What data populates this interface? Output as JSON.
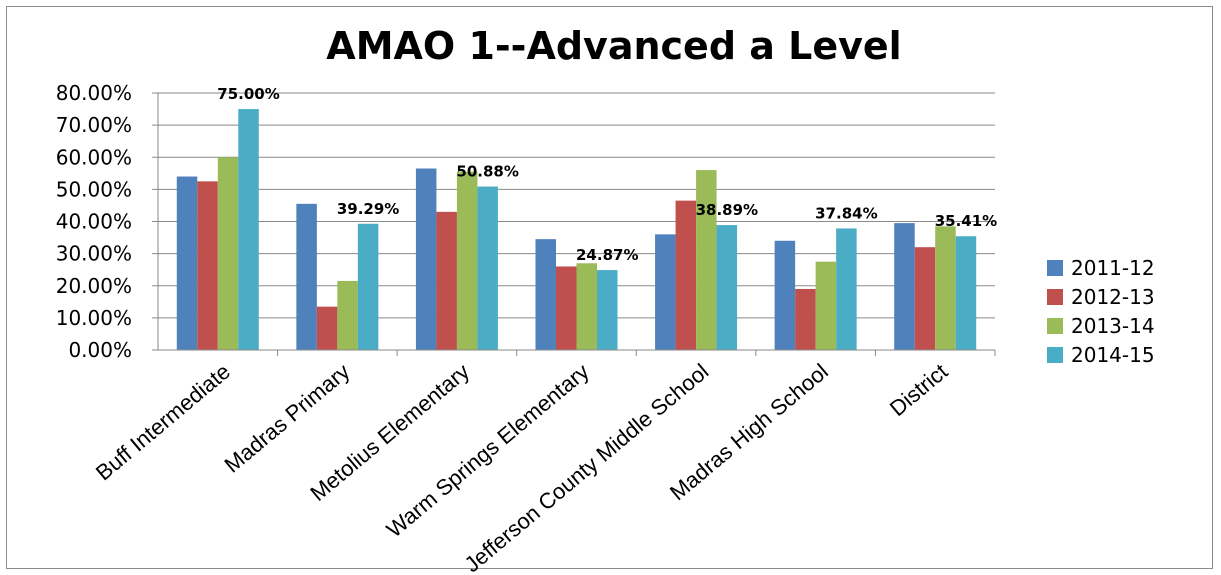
{
  "chart_data": {
    "type": "bar",
    "title": "AMAO 1--Advanced a Level",
    "xlabel": "",
    "ylabel": "",
    "ylim": [
      0,
      80
    ],
    "y_ticks": [
      "0.00%",
      "10.00%",
      "20.00%",
      "30.00%",
      "40.00%",
      "50.00%",
      "60.00%",
      "70.00%",
      "80.00%"
    ],
    "grid": true,
    "legend_position": "right",
    "categories": [
      "Buff Intermediate",
      "Madras Primary",
      "Metolius Elementary",
      "Warm Springs Elementary",
      "Jefferson County Middle School",
      "Madras High School",
      "District"
    ],
    "series": [
      {
        "name": "2011-12",
        "color": "#4f81bd",
        "values": [
          54.0,
          45.5,
          56.5,
          34.5,
          36.0,
          34.0,
          39.5
        ]
      },
      {
        "name": "2012-13",
        "color": "#c0504d",
        "values": [
          52.5,
          13.5,
          43.0,
          26.0,
          46.5,
          19.0,
          32.0
        ]
      },
      {
        "name": "2013-14",
        "color": "#9bbb59",
        "values": [
          60.0,
          21.5,
          55.5,
          27.0,
          56.0,
          27.5,
          38.5
        ]
      },
      {
        "name": "2014-15",
        "color": "#4bacc6",
        "values": [
          75.0,
          39.29,
          50.88,
          24.87,
          38.89,
          37.84,
          35.41
        ]
      }
    ],
    "data_labels": [
      {
        "category": "Buff Intermediate",
        "series": "2014-15",
        "text": "75.00%"
      },
      {
        "category": "Madras Primary",
        "series": "2014-15",
        "text": "39.29%"
      },
      {
        "category": "Metolius Elementary",
        "series": "2014-15",
        "text": "50.88%"
      },
      {
        "category": "Warm Springs Elementary",
        "series": "2014-15",
        "text": "24.87%"
      },
      {
        "category": "Jefferson County Middle School",
        "series": "2014-15",
        "text": "38.89%"
      },
      {
        "category": "Madras High School",
        "series": "2014-15",
        "text": "37.84%"
      },
      {
        "category": "District",
        "series": "2014-15",
        "text": "35.41%"
      }
    ]
  }
}
